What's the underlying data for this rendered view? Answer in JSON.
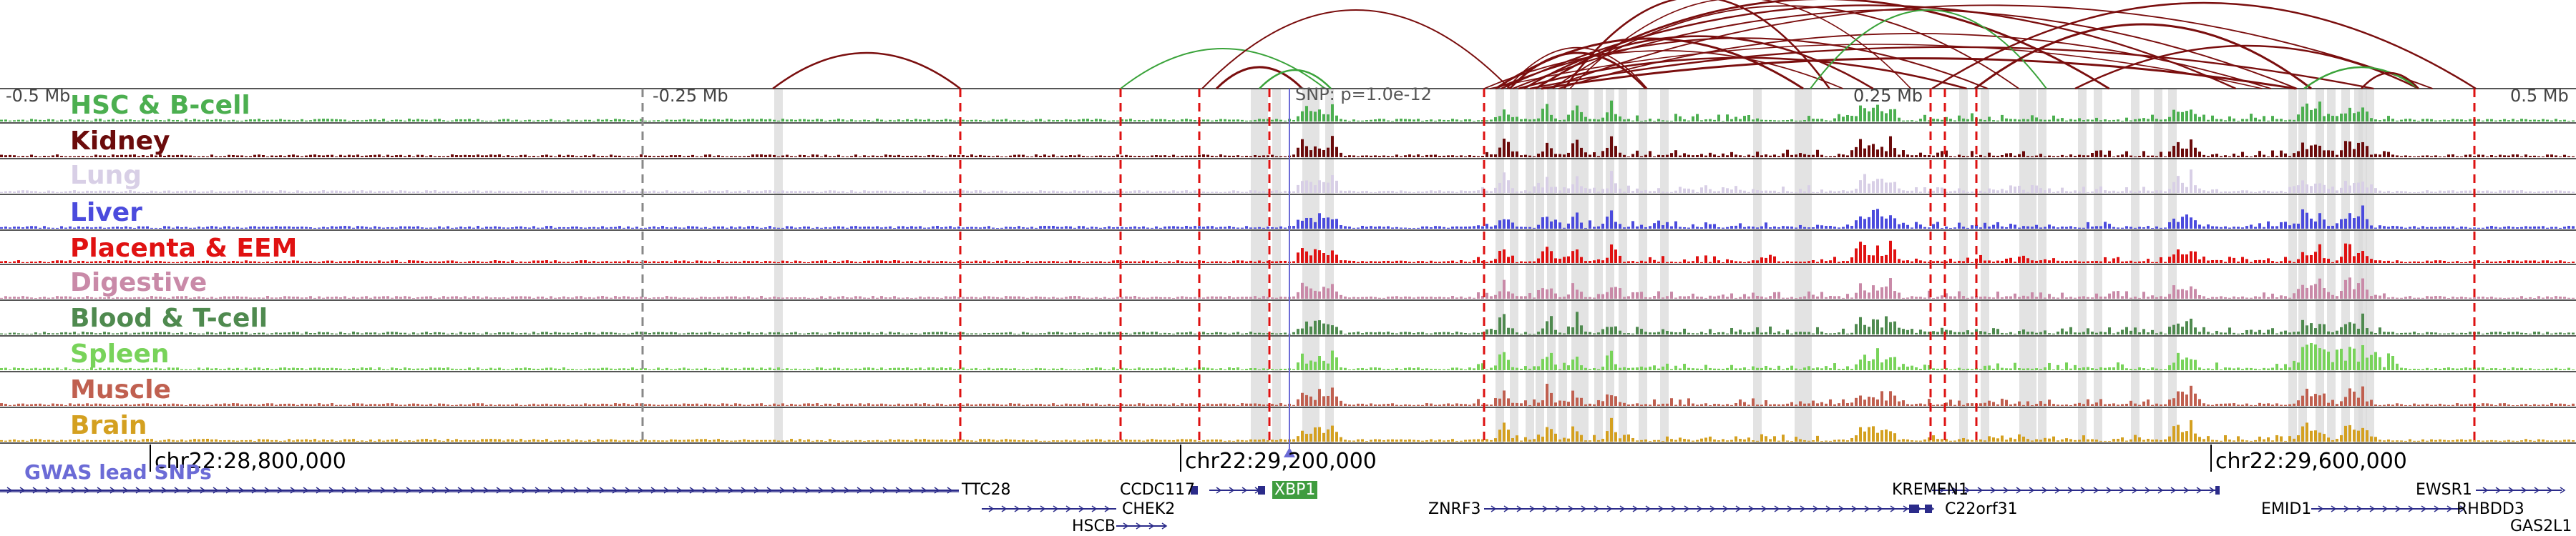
{
  "scale_labels": [
    "-0.5 Mb",
    "-0.25 Mb",
    "0.25 Mb",
    "0.5 Mb"
  ],
  "snp_label": "SNP: p=1.0e-12",
  "tracks": [
    {
      "label": "HSC & B-cell",
      "color": "#4caf50"
    },
    {
      "label": "Kidney",
      "color": "#6b0b0b"
    },
    {
      "label": "Lung",
      "color": "#d8cfe6"
    },
    {
      "label": "Liver",
      "color": "#4b4bdd"
    },
    {
      "label": "Placenta & EEM",
      "color": "#e01212"
    },
    {
      "label": "Digestive",
      "color": "#c98aa8"
    },
    {
      "label": "Blood & T-cell",
      "color": "#4f8a4f"
    },
    {
      "label": "Spleen",
      "color": "#78d35a"
    },
    {
      "label": "Muscle",
      "color": "#c06050"
    },
    {
      "label": "Brain",
      "color": "#d4a020"
    }
  ],
  "coordinates": [
    "chr22:28,800,000",
    "chr22:29,200,000",
    "chr22:29,600,000"
  ],
  "gwas_label": "GWAS lead SNPs",
  "genes": [
    {
      "label": "TTC28"
    },
    {
      "label": "CCDC117"
    },
    {
      "label": "CHEK2"
    },
    {
      "label": "HSCB"
    },
    {
      "label": "XBP1",
      "highlight": true
    },
    {
      "label": "ZNRF3"
    },
    {
      "label": "KREMEN1"
    },
    {
      "label": "C22orf31"
    },
    {
      "label": "EMID1"
    },
    {
      "label": "EWSR1"
    },
    {
      "label": "RHBDD3"
    },
    {
      "label": "GAS2L1"
    }
  ],
  "colors": {
    "loop_dark": "#7a0e0e",
    "loop_green": "#3aa33a",
    "boundary_red": "#dd1111",
    "highlight_band": "#d9d9d9",
    "gene_strand": "#2b2b8a"
  }
}
